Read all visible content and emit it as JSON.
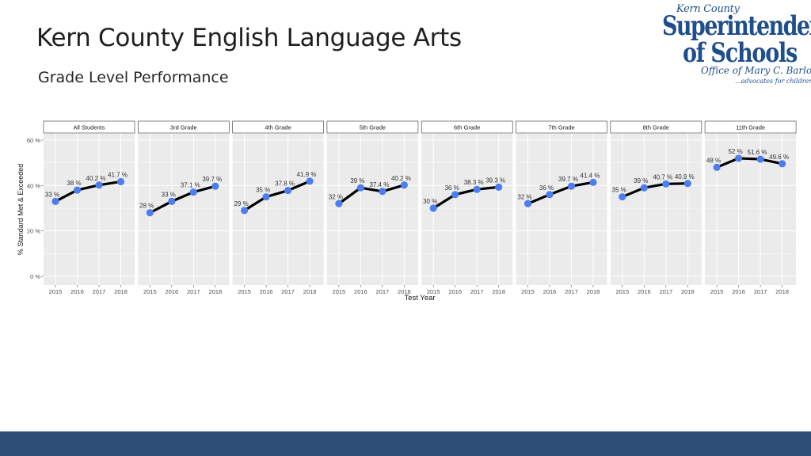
{
  "slide": {
    "title": "Kern County English Language Arts",
    "subtitle": "Grade Level Performance"
  },
  "logo": {
    "line1": "Kern County",
    "line2": "Superintendent",
    "line3": "of Schools",
    "line4": "Office of Mary C. Barlow",
    "line5": "...advocates for children"
  },
  "colors": {
    "panel_bg": "#ebebeb",
    "strip_bg": "#ffffff",
    "line": "#000000",
    "point": "#4d7ef0",
    "footer": "#2c4e75"
  },
  "chart_data": {
    "type": "line",
    "faceted": true,
    "xlabel": "Test Year",
    "ylabel": "% Standard Met & Exceeded",
    "x": [
      "2015",
      "2016",
      "2017",
      "2018"
    ],
    "ylim": [
      0,
      60
    ],
    "y_ticks": [
      0,
      20,
      40,
      60
    ],
    "y_tick_labels": [
      "0 %",
      "20 %",
      "40 %",
      "60 %"
    ],
    "grid": true,
    "legend": "none",
    "series": [
      {
        "name": "All Students",
        "values": [
          33,
          38,
          40.2,
          41.7
        ],
        "labels": [
          "33 %",
          "38 %",
          "40.2 %",
          "41.7 %"
        ]
      },
      {
        "name": "3rd Grade",
        "values": [
          28,
          33,
          37.1,
          39.7
        ],
        "labels": [
          "28 %",
          "33 %",
          "37.1 %",
          "39.7 %"
        ]
      },
      {
        "name": "4th Grade",
        "values": [
          29,
          35,
          37.8,
          41.9
        ],
        "labels": [
          "29 %",
          "35 %",
          "37.8 %",
          "41.9 %"
        ]
      },
      {
        "name": "5th Grade",
        "values": [
          32,
          39,
          37.4,
          40.2
        ],
        "labels": [
          "32 %",
          "39 %",
          "37.4 %",
          "40.2 %"
        ]
      },
      {
        "name": "6th Grade",
        "values": [
          30,
          36,
          38.3,
          39.3
        ],
        "labels": [
          "30 %",
          "36 %",
          "38.3 %",
          "39.3 %"
        ]
      },
      {
        "name": "7th Grade",
        "values": [
          32,
          36,
          39.7,
          41.4
        ],
        "labels": [
          "32 %",
          "36 %",
          "39.7 %",
          "41.4 %"
        ]
      },
      {
        "name": "8th Grade",
        "values": [
          35,
          39,
          40.7,
          40.9
        ],
        "labels": [
          "35 %",
          "39 %",
          "40.7 %",
          "40.9 %"
        ]
      },
      {
        "name": "11th Grade",
        "values": [
          48,
          52,
          51.6,
          49.6
        ],
        "labels": [
          "48 %",
          "52 %",
          "51.6 %",
          "49.6 %"
        ]
      }
    ]
  }
}
